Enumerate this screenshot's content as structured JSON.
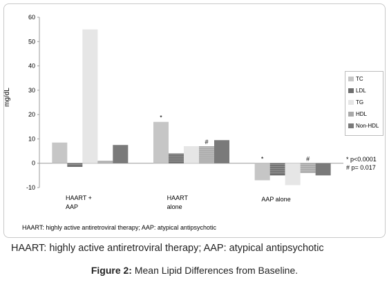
{
  "chart_data": {
    "type": "bar",
    "ylabel": "mg/dL",
    "ylim": [
      -10,
      60
    ],
    "yticks": [
      "-10",
      "0",
      "10",
      "20",
      "30",
      "40",
      "50",
      "60"
    ],
    "categories": [
      "HAART +\nAAP",
      "HAART\nalone",
      "AAP alone"
    ],
    "category_lines": [
      [
        "HAART +",
        "AAP"
      ],
      [
        "HAART",
        "alone"
      ],
      [
        "AAP alone"
      ]
    ],
    "series": [
      {
        "name": "TC",
        "values": [
          8.5,
          17,
          -7
        ],
        "color": "#c6c6c6"
      },
      {
        "name": "LDL",
        "values": [
          -1.5,
          4,
          -5
        ],
        "color": "#6e6e6e"
      },
      {
        "name": "TG",
        "values": [
          55,
          7,
          -9
        ],
        "color": "#e6e6e6"
      },
      {
        "name": "HDL",
        "values": [
          1,
          7,
          -4
        ],
        "color": "#a9a9a9"
      },
      {
        "name": "Non-HDL",
        "values": [
          7.5,
          9.5,
          -5
        ],
        "color": "#7a7a7a"
      }
    ],
    "annotations": [
      {
        "text": "*",
        "category": 1,
        "series": 0
      },
      {
        "text": "#",
        "category": 1,
        "series": 3
      },
      {
        "text": "*",
        "category": 2,
        "series": 0
      },
      {
        "text": "#",
        "category": 2,
        "series": 3
      }
    ],
    "notes": [
      "* p<0.0001",
      "# p= 0.017"
    ],
    "legend_position": "right"
  },
  "footnote_small": "HAART: highly active antiretroviral therapy; AAP: atypical antipsychotic",
  "caption_text": "HAART: highly active antiretroviral therapy; AAP: atypical antipsychotic",
  "figure_label": "Figure 2:",
  "figure_title": " Mean Lipid Differences from Baseline."
}
